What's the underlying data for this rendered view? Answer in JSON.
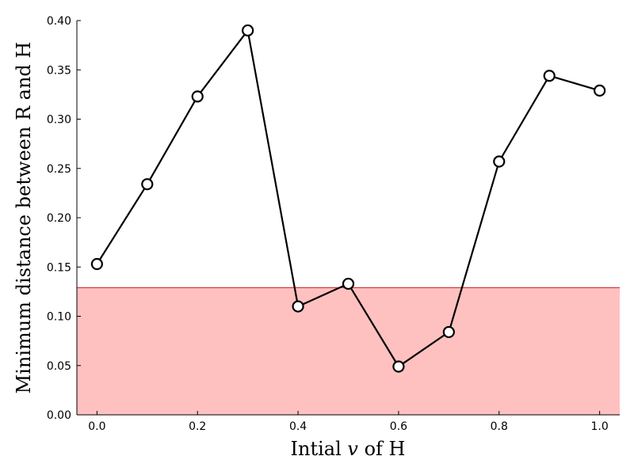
{
  "chart_data": {
    "type": "line",
    "xlabel": "Intial v of H",
    "xlabel_prefix": "Intial ",
    "xlabel_var": "v",
    "xlabel_suffix": " of H",
    "ylabel": "Minimum distance between R and H",
    "xlim": [
      -0.04,
      1.04
    ],
    "ylim": [
      0.0,
      0.4
    ],
    "x_ticks": [
      0.0,
      0.2,
      0.4,
      0.6,
      0.8,
      1.0
    ],
    "x_tick_labels": [
      "0.0",
      "0.2",
      "0.4",
      "0.6",
      "0.8",
      "1.0"
    ],
    "y_ticks": [
      0.0,
      0.05,
      0.1,
      0.15,
      0.2,
      0.25,
      0.3,
      0.35,
      0.4
    ],
    "y_tick_labels": [
      "0.00",
      "0.05",
      "0.10",
      "0.15",
      "0.20",
      "0.25",
      "0.30",
      "0.35",
      "0.40"
    ],
    "grid": false,
    "series": [
      {
        "x": [
          0.0,
          0.1,
          0.2,
          0.3,
          0.4,
          0.5,
          0.6,
          0.7,
          0.8,
          0.9,
          1.0
        ],
        "y": [
          0.153,
          0.234,
          0.323,
          0.39,
          0.11,
          0.133,
          0.049,
          0.084,
          0.257,
          0.344,
          0.329
        ],
        "color": "#000000",
        "marker": "circle",
        "marker_fill": "#ffffff"
      }
    ],
    "threshold_band": {
      "y0": 0.0,
      "y1": 0.129,
      "fill": "#ffc0c0",
      "edge": "#d43a3a"
    }
  }
}
